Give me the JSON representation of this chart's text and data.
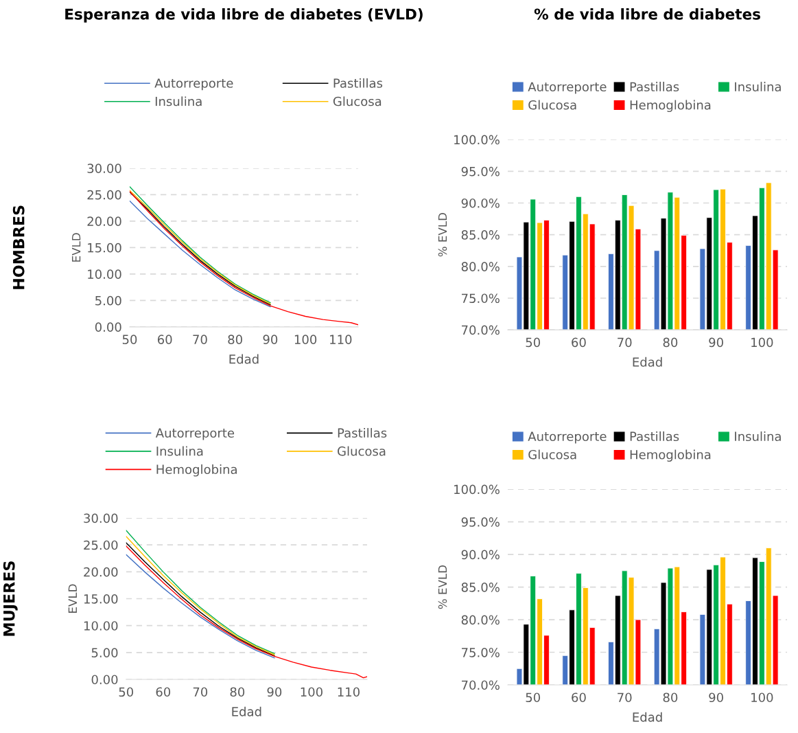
{
  "chart_data": [
    {
      "type": "line",
      "title": "Esperanza de vida libre de diabetes (EVLD)",
      "xlabel": "Edad",
      "ylabel": "EVLD",
      "annotations": [
        "HOMBRES"
      ],
      "x": [
        50,
        55,
        60,
        65,
        70,
        75,
        80,
        85,
        90,
        95,
        100,
        105,
        110,
        113,
        115
      ],
      "series": [
        {
          "name": "Autorreporte",
          "color": "#4472c4",
          "values": [
            23.8,
            20.5,
            17.5,
            14.5,
            11.8,
            9.3,
            7.0,
            5.3,
            3.8,
            null,
            null,
            null,
            null,
            null,
            null
          ]
        },
        {
          "name": "Pastillas",
          "color": "#000000",
          "values": [
            25.5,
            22.3,
            18.8,
            15.6,
            12.6,
            10.0,
            7.7,
            5.8,
            4.2,
            null,
            null,
            null,
            null,
            null,
            null
          ]
        },
        {
          "name": "Insulina",
          "color": "#00b050",
          "values": [
            26.5,
            23.0,
            19.6,
            16.3,
            13.2,
            10.5,
            8.1,
            6.2,
            4.6,
            null,
            null,
            null,
            null,
            null,
            null
          ]
        },
        {
          "name": "Glucosa",
          "color": "#ffc000",
          "values": [
            25.8,
            22.6,
            19.2,
            16.0,
            12.9,
            10.3,
            7.9,
            6.0,
            4.4,
            null,
            null,
            null,
            null,
            null,
            null
          ]
        },
        {
          "color": "#ff0000",
          "values": [
            25.6,
            22.0,
            18.5,
            15.3,
            12.3,
            9.7,
            7.4,
            5.6,
            4.0,
            2.9,
            2.0,
            1.4,
            1.0,
            0.8,
            0.4
          ]
        }
      ],
      "xlim": [
        50,
        115
      ],
      "xticks": [
        50,
        60,
        70,
        80,
        90,
        100,
        110
      ],
      "ylim": [
        0,
        30
      ],
      "yticks": [
        {
          "value": 0,
          "label": "0.00"
        },
        {
          "value": 5,
          "label": "5.00"
        },
        {
          "value": 10,
          "label": "10.00"
        },
        {
          "value": 15,
          "label": "15.00"
        },
        {
          "value": 20,
          "label": "20.00"
        },
        {
          "value": 25,
          "label": "25.00"
        },
        {
          "value": 30,
          "label": "30.00"
        }
      ],
      "grid": "y",
      "legend": "top",
      "marker": "none",
      "line_style": "solid"
    },
    {
      "type": "bar",
      "title": "% de vida libre de diabetes",
      "xlabel": "Edad",
      "ylabel": "% EVLD",
      "categories": [
        "50",
        "60",
        "70",
        "80",
        "90",
        "100"
      ],
      "series": [
        {
          "name": "Autorreporte",
          "color": "#4472c4",
          "values": [
            81.5,
            81.8,
            82.0,
            82.5,
            82.8,
            83.3
          ]
        },
        {
          "name": "Pastillas",
          "color": "#000000",
          "values": [
            87.0,
            87.1,
            87.3,
            87.6,
            87.7,
            88.0
          ]
        },
        {
          "name": "Insulina",
          "color": "#00b050",
          "values": [
            90.6,
            91.0,
            91.3,
            91.7,
            92.1,
            92.4
          ]
        },
        {
          "name": "Glucosa",
          "color": "#ffc000",
          "values": [
            86.9,
            88.3,
            89.6,
            90.9,
            92.2,
            93.2
          ]
        },
        {
          "name": "Hemoglobina",
          "color": "#ff0000",
          "values": [
            87.3,
            86.7,
            85.9,
            84.9,
            83.8,
            82.6
          ]
        }
      ],
      "ylim": [
        70,
        100
      ],
      "yticks": [
        {
          "value": 70,
          "label": "70.0%"
        },
        {
          "value": 75,
          "label": "75.0%"
        },
        {
          "value": 80,
          "label": "80.0%"
        },
        {
          "value": 85,
          "label": "85.0%"
        },
        {
          "value": 90,
          "label": "90.0%"
        },
        {
          "value": 95,
          "label": "95.0%"
        },
        {
          "value": 100,
          "label": "100.0%"
        }
      ],
      "grid": "y",
      "legend": "top"
    },
    {
      "type": "line",
      "xlabel": "Edad",
      "ylabel": "EVLD",
      "annotations": [
        "MUJERES"
      ],
      "x": [
        50,
        55,
        60,
        65,
        70,
        75,
        80,
        85,
        90,
        95,
        100,
        105,
        110,
        112,
        114,
        115
      ],
      "series": [
        {
          "name": "Autorreporte",
          "color": "#4472c4",
          "values": [
            23.2,
            20.0,
            17.0,
            14.2,
            11.6,
            9.3,
            7.2,
            5.4,
            4.0,
            null,
            null,
            null,
            null,
            null,
            null,
            null
          ]
        },
        {
          "name": "Pastillas",
          "color": "#000000",
          "values": [
            25.4,
            21.9,
            18.6,
            15.4,
            12.5,
            9.9,
            7.7,
            5.9,
            4.4,
            null,
            null,
            null,
            null,
            null,
            null,
            null
          ]
        },
        {
          "name": "Insulina",
          "color": "#00b050",
          "values": [
            27.7,
            23.8,
            20.0,
            16.5,
            13.4,
            10.7,
            8.2,
            6.3,
            4.8,
            null,
            null,
            null,
            null,
            null,
            null,
            null
          ]
        },
        {
          "name": "Glucosa",
          "color": "#ffc000",
          "values": [
            26.6,
            22.9,
            19.3,
            16.1,
            13.1,
            10.4,
            7.9,
            6.1,
            4.6,
            null,
            null,
            null,
            null,
            null,
            null,
            null
          ]
        },
        {
          "name": "Hemoglobina",
          "color": "#ff0000",
          "values": [
            24.8,
            21.3,
            18.0,
            14.9,
            12.0,
            9.6,
            7.5,
            5.7,
            4.3,
            3.2,
            2.3,
            1.7,
            1.2,
            1.0,
            0.3,
            0.5
          ]
        }
      ],
      "xlim": [
        50,
        115
      ],
      "xticks": [
        50,
        60,
        70,
        80,
        90,
        100,
        110
      ],
      "ylim": [
        0,
        30
      ],
      "yticks": [
        {
          "value": 0,
          "label": "0.00"
        },
        {
          "value": 5,
          "label": "5.00"
        },
        {
          "value": 10,
          "label": "10.00"
        },
        {
          "value": 15,
          "label": "15.00"
        },
        {
          "value": 20,
          "label": "20.00"
        },
        {
          "value": 25,
          "label": "25.00"
        },
        {
          "value": 30,
          "label": "30.00"
        }
      ],
      "grid": "y",
      "legend": "top",
      "marker": "none",
      "line_style": "solid"
    },
    {
      "type": "bar",
      "xlabel": "Edad",
      "ylabel": "% EVLD",
      "categories": [
        "50",
        "60",
        "70",
        "80",
        "90",
        "100"
      ],
      "series": [
        {
          "name": "Autorreporte",
          "color": "#4472c4",
          "values": [
            72.5,
            74.5,
            76.6,
            78.6,
            80.8,
            82.9
          ]
        },
        {
          "name": "Pastillas",
          "color": "#000000",
          "values": [
            79.3,
            81.5,
            83.7,
            85.7,
            87.7,
            89.5
          ]
        },
        {
          "name": "Insulina",
          "color": "#00b050",
          "values": [
            86.7,
            87.1,
            87.5,
            87.9,
            88.4,
            88.9
          ]
        },
        {
          "name": "Glucosa",
          "color": "#ffc000",
          "values": [
            83.2,
            84.9,
            86.5,
            88.1,
            89.6,
            91.0
          ]
        },
        {
          "name": "Hemoglobina",
          "color": "#ff0000",
          "values": [
            77.6,
            78.8,
            80.0,
            81.2,
            82.4,
            83.7
          ]
        }
      ],
      "ylim": [
        70,
        100
      ],
      "yticks": [
        {
          "value": 70,
          "label": "70.0%"
        },
        {
          "value": 75,
          "label": "75.0%"
        },
        {
          "value": 80,
          "label": "80.0%"
        },
        {
          "value": 85,
          "label": "85.0%"
        },
        {
          "value": 90,
          "label": "90.0%"
        },
        {
          "value": 95,
          "label": "95.0%"
        },
        {
          "value": 100,
          "label": "100.0%"
        }
      ],
      "grid": "y",
      "legend": "top"
    }
  ]
}
